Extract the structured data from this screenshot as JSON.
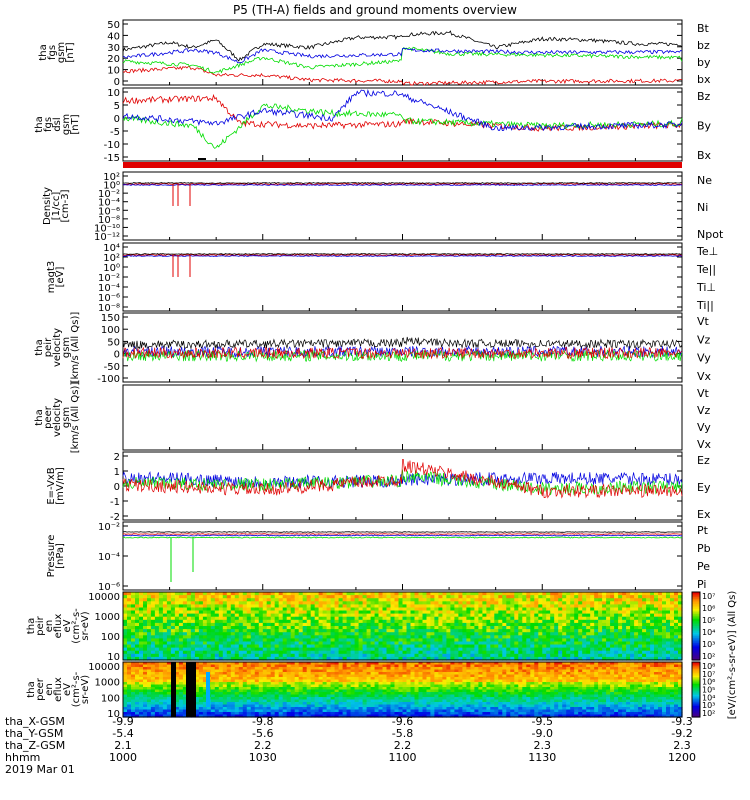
{
  "title": "P5 (TH-A) fields and ground moments overview",
  "date": "2019 Mar 01",
  "colors": {
    "black": "#000000",
    "red": "#e00000",
    "green": "#00dd00",
    "blue": "#0000e0"
  },
  "panels": [
    {
      "id": "fgs_gsm",
      "ylabel": [
        "tha",
        "fgs",
        "gsm",
        "[nT]"
      ],
      "yticks": [
        "50",
        "40",
        "30",
        "20",
        "10",
        "0"
      ],
      "legend": [
        {
          "label": "Bt",
          "color": "black"
        },
        {
          "label": "bz",
          "color": "red"
        },
        {
          "label": "by",
          "color": "green"
        },
        {
          "label": "bx",
          "color": "blue"
        }
      ]
    },
    {
      "id": "fgs_dsl",
      "ylabel": [
        "tha",
        "fgs",
        "dsl",
        "gsm",
        "[nT]"
      ],
      "yticks": [
        "10",
        "5",
        "0",
        "-5",
        "-10",
        "-15"
      ],
      "legend": [
        {
          "label": "Bz",
          "color": "red"
        },
        {
          "label": "By",
          "color": "green"
        },
        {
          "label": "Bx",
          "color": "blue"
        }
      ]
    },
    {
      "id": "flag",
      "ylabel": [],
      "yticks": [],
      "legend": []
    },
    {
      "id": "density",
      "ylabel": [
        "Density",
        "[1/cc]",
        "[cm-3]"
      ],
      "yticks": [
        "10²",
        "10⁰",
        "10⁻²",
        "10⁻⁴",
        "10⁻⁶",
        "10⁻⁸",
        "10⁻¹⁰",
        "10⁻¹²"
      ],
      "legend": [
        {
          "label": "Ne",
          "color": "red"
        },
        {
          "label": "Ni",
          "color": "black"
        },
        {
          "label": "Npot",
          "color": "blue"
        }
      ]
    },
    {
      "id": "temperature",
      "ylabel": [
        "magt3",
        "[eV]"
      ],
      "yticks": [
        "10⁴",
        "10²",
        "10⁰",
        "10⁻²",
        "10⁻⁴",
        "10⁻⁶",
        "10⁻⁸"
      ],
      "legend": [
        {
          "label": "Te⊥",
          "color": "red"
        },
        {
          "label": "Te||",
          "color": "black"
        },
        {
          "label": "Ti⊥",
          "color": "green"
        },
        {
          "label": "Ti||",
          "color": "green"
        }
      ]
    },
    {
      "id": "peir_velocity",
      "ylabel": [
        "tha",
        "peir",
        "velocity",
        "gsm",
        "[km/s (All Qs)]"
      ],
      "yticks": [
        "150",
        "100",
        "50",
        "0",
        "-50",
        "-100"
      ],
      "legend": [
        {
          "label": "Vt",
          "color": "black"
        },
        {
          "label": "Vz",
          "color": "red"
        },
        {
          "label": "Vy",
          "color": "green"
        },
        {
          "label": "Vx",
          "color": "blue"
        }
      ]
    },
    {
      "id": "peer_velocity",
      "ylabel": [
        "tha",
        "peer",
        "velocity",
        "gsm",
        "[km/s (All Qs)]"
      ],
      "yticks": [],
      "legend": [
        {
          "label": "Vt",
          "color": "black"
        },
        {
          "label": "Vz",
          "color": "red"
        },
        {
          "label": "Vy",
          "color": "green"
        },
        {
          "label": "Vx",
          "color": "blue"
        }
      ]
    },
    {
      "id": "efield",
      "ylabel": [
        "E=-VxB",
        "[mV/m]"
      ],
      "yticks": [
        "2",
        "1",
        "0",
        "-1",
        "-2"
      ],
      "legend": [
        {
          "label": "Ez",
          "color": "red"
        },
        {
          "label": "Ey",
          "color": "green"
        },
        {
          "label": "Ex",
          "color": "blue"
        }
      ]
    },
    {
      "id": "pressure",
      "ylabel": [
        "Pressure",
        "[nPa]"
      ],
      "yticks": [
        "10⁻²",
        "10⁻⁴",
        "10⁻⁶"
      ],
      "legend": [
        {
          "label": "Pt",
          "color": "black"
        },
        {
          "label": "Pb",
          "color": "red"
        },
        {
          "label": "Pe",
          "color": "green"
        },
        {
          "label": "Pi",
          "color": "blue"
        }
      ]
    },
    {
      "id": "peir_spec",
      "ylabel": [
        "tha",
        "peir",
        "en",
        "eflux",
        "eV",
        "(cm²-s-",
        "sr-eV)"
      ],
      "yticks": [
        "10000",
        "1000",
        "100",
        "10"
      ],
      "legend": []
    },
    {
      "id": "peer_spec",
      "ylabel": [
        "tha",
        "peer",
        "en",
        "eflux",
        "eV",
        "(cm²-s-",
        "sr-eV)"
      ],
      "yticks": [
        "10000",
        "1000",
        "100",
        "10"
      ],
      "legend": []
    }
  ],
  "colorbar_label": "[eV/(cm²-s-sr-eV)] (All Qs)",
  "colorbar1_ticks": [
    "10⁷",
    "10⁶",
    "10⁵",
    "10⁴",
    "10³",
    "10²"
  ],
  "colorbar2_ticks": [
    "10⁸",
    "10⁷",
    "10⁶",
    "10⁵",
    "10⁴",
    "10³",
    "10²"
  ],
  "xaxis": {
    "row_labels": [
      "tha_X-GSM",
      "tha_Y-GSM",
      "tha_Z-GSM",
      "hhmm"
    ],
    "columns": [
      {
        "values": [
          "-9.9",
          "-5.4",
          "2.1",
          "1000"
        ]
      },
      {
        "values": [
          "-9.8",
          "-5.6",
          "2.2",
          "1030"
        ]
      },
      {
        "values": [
          "-9.6",
          "-5.8",
          "2.2",
          "1100"
        ]
      },
      {
        "values": [
          "-9.5",
          "-9.0",
          "2.3",
          "1130"
        ]
      },
      {
        "values": [
          "-9.3",
          "-9.2",
          "2.3",
          "1200"
        ]
      }
    ]
  },
  "chart_data": {
    "type": "line",
    "title": "P5 (TH-A) fields and ground moments overview",
    "x_ticks_hhmm": [
      "1000",
      "1030",
      "1100",
      "1130",
      "1200"
    ],
    "series": [
      {
        "panel": "fgs_gsm",
        "name": "Bt",
        "x": [
          1000,
          1010,
          1015,
          1020,
          1025,
          1030,
          1040,
          1050,
          1100,
          1110,
          1120,
          1130,
          1140,
          1150,
          1200
        ],
        "y": [
          28,
          34,
          30,
          36,
          20,
          33,
          30,
          38,
          40,
          42,
          30,
          37,
          36,
          33,
          31
        ]
      },
      {
        "panel": "fgs_gsm",
        "name": "bz",
        "x": [
          1000,
          1015,
          1020,
          1030,
          1040,
          1100,
          1130,
          1200
        ],
        "y": [
          11,
          14,
          8,
          8,
          4,
          1,
          3,
          4
        ]
      },
      {
        "panel": "fgs_gsm",
        "name": "by",
        "x": [
          1000,
          1015,
          1020,
          1030,
          1040,
          1100,
          1110,
          1130,
          1200
        ],
        "y": [
          19,
          16,
          10,
          22,
          14,
          30,
          25,
          24,
          19
        ]
      },
      {
        "panel": "fgs_gsm",
        "name": "bx",
        "x": [
          1000,
          1015,
          1020,
          1025,
          1030,
          1040,
          1100,
          1130,
          1200
        ],
        "y": [
          22,
          28,
          26,
          18,
          28,
          23,
          28,
          26,
          27
        ]
      },
      {
        "panel": "efield",
        "name": "Ex",
        "x": [
          1000,
          1030,
          1100,
          1130,
          1200
        ],
        "y": [
          0.7,
          0.3,
          0.5,
          0.6,
          0.4
        ]
      },
      {
        "panel": "efield",
        "name": "Ey",
        "x": [
          1000,
          1030,
          1100,
          1130,
          1200
        ],
        "y": [
          0.2,
          0.1,
          0.8,
          -0.2,
          0.1
        ]
      },
      {
        "panel": "efield",
        "name": "Ez",
        "x": [
          1000,
          1030,
          1100,
          1130,
          1200
        ],
        "y": [
          0.1,
          -0.3,
          1.6,
          -0.4,
          -0.3
        ]
      }
    ]
  }
}
